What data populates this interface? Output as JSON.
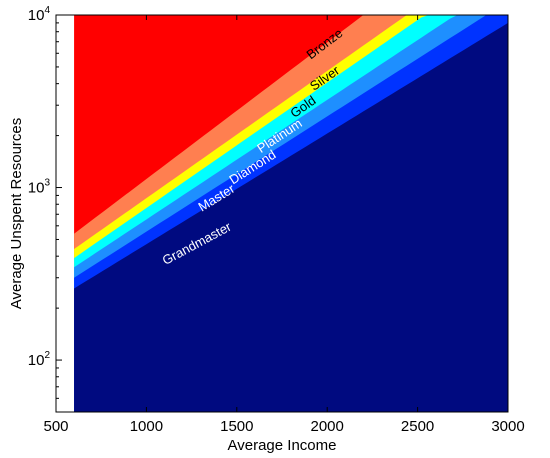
{
  "chart_data": {
    "type": "area",
    "xlabel": "Average Income",
    "ylabel": "Average Unspent Resources",
    "xlim": [
      500,
      3000
    ],
    "ylim": [
      50,
      10000
    ],
    "y_scale": "log",
    "grid": false,
    "x_ticks": [
      "500",
      "1000",
      "1500",
      "2000",
      "2500",
      "3000"
    ],
    "y_ticks": [
      {
        "base": "10",
        "exp": "2"
      },
      {
        "base": "10",
        "exp": "3"
      },
      {
        "base": "10",
        "exp": "4"
      }
    ],
    "data_x_start": 600,
    "boundaries": [
      {
        "name": "Bronze",
        "upper": "Bronze",
        "lower": "Silver",
        "color": "#ff0000",
        "label_color": "#000000",
        "points": [
          [
            600,
            540
          ],
          [
            2200,
            10000
          ]
        ],
        "label_pos": [
          2000,
          6500
        ]
      },
      {
        "name": "Silver",
        "upper": "Silver",
        "lower": "Gold",
        "color": "#ff7f50",
        "label_color": "#000000",
        "points": [
          [
            600,
            440
          ],
          [
            2440,
            10000
          ]
        ],
        "label_pos": [
          2000,
          4100
        ]
      },
      {
        "name": "Gold",
        "upper": "Gold",
        "lower": "Platinum",
        "color": "#ffff00",
        "label_color": "#000000",
        "points": [
          [
            600,
            390
          ],
          [
            2540,
            10000
          ]
        ],
        "label_pos": [
          1880,
          2800
        ]
      },
      {
        "name": "Platinum",
        "upper": "Platinum",
        "lower": "Diamond",
        "color": "#00ffff",
        "label_color": "#ffffff",
        "points": [
          [
            600,
            345
          ],
          [
            2710,
            10000
          ]
        ],
        "label_pos": [
          1750,
          1900
        ]
      },
      {
        "name": "Diamond",
        "upper": "Diamond",
        "lower": "Master",
        "color": "#1e8fff",
        "label_color": "#ffffff",
        "points": [
          [
            600,
            300
          ],
          [
            2880,
            10000
          ]
        ],
        "label_pos": [
          1600,
          1250
        ]
      },
      {
        "name": "Master",
        "upper": "Master",
        "lower": "Grandmaster",
        "color": "#0033ff",
        "label_color": "#ffffff",
        "points": [
          [
            600,
            260
          ],
          [
            3000,
            9000
          ]
        ],
        "label_pos": [
          1400,
          830
        ]
      },
      {
        "name": "Grandmaster",
        "upper": "Grandmaster",
        "lower": null,
        "color": "#000a80",
        "label_color": "#ffffff",
        "points": [
          [
            600,
            260
          ],
          [
            3000,
            5800
          ]
        ],
        "label_pos": [
          1290,
          450
        ]
      }
    ]
  }
}
